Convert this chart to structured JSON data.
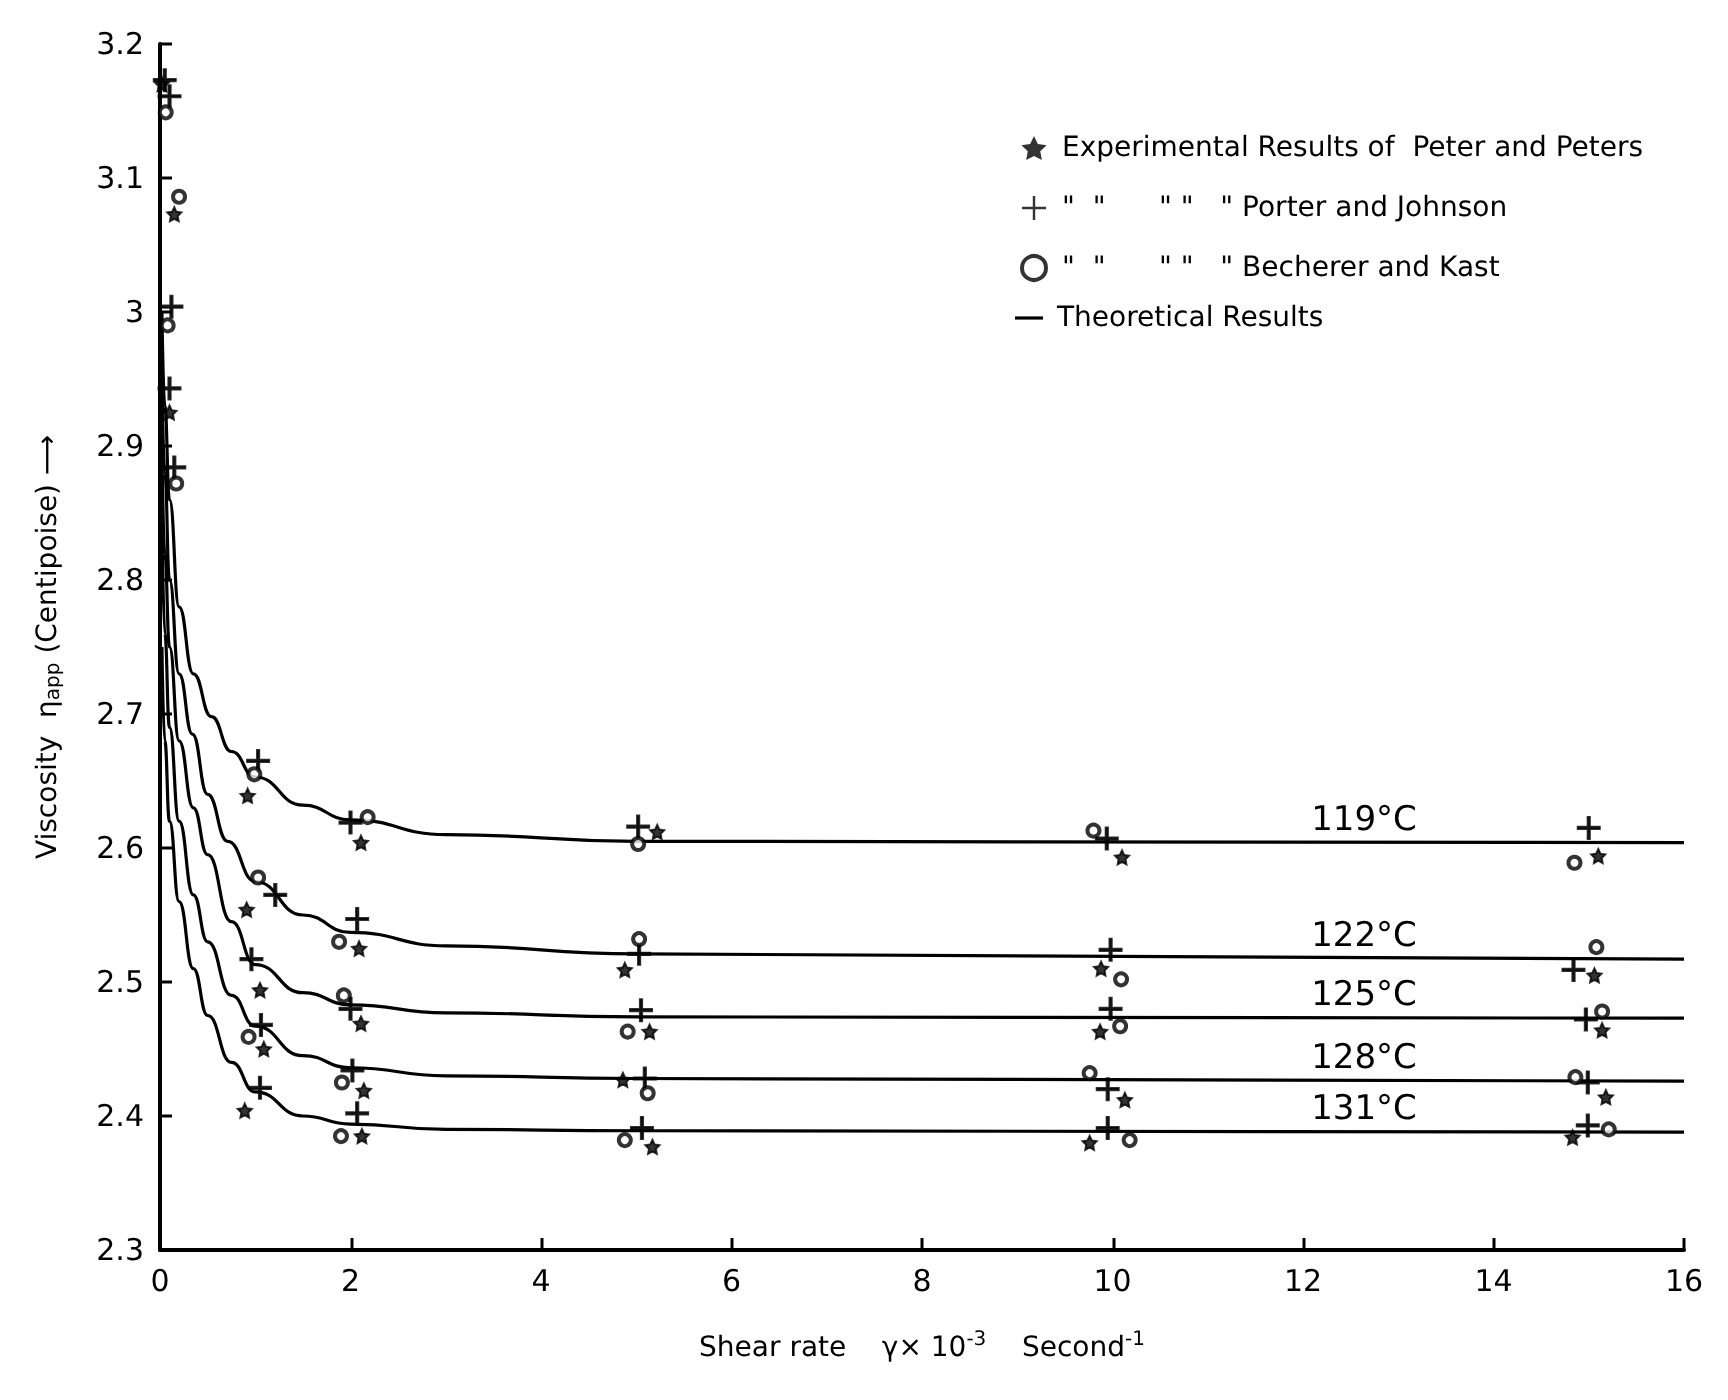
{
  "chart_data": {
    "type": "scatter",
    "xlabel": "Shear rate    γ× 10$^{-3}$    Second$^{-1}$",
    "ylabel": "Viscosity  η$_{app}$ (Centipoise) ⟶",
    "xlim": [
      0,
      16
    ],
    "xticks": [
      0,
      2,
      4,
      6,
      8,
      10,
      12,
      14,
      16
    ],
    "ylim": [
      2.3,
      3.2
    ],
    "yticks": [
      2.3,
      2.4,
      2.5,
      2.6,
      2.7,
      2.8,
      2.9,
      3.0,
      3.1,
      3.2
    ],
    "grid": false,
    "legend": "top right",
    "series": [
      {
        "name": "Experimental Results of  Peter and Peters",
        "marker": "star",
        "color": "#000000",
        "x": [
          0.02,
          0.15,
          0.1,
          0.92,
          2.11,
          5.22,
          10.1,
          15.1,
          0.91,
          2.09,
          4.88,
          9.88,
          15.06,
          1.05,
          2.11,
          5.14,
          9.87,
          15.14,
          1.09,
          2.14,
          4.86,
          10.13,
          15.18,
          0.89,
          2.12,
          5.17,
          9.76,
          14.83
        ],
        "values": [
          3.17,
          3.073,
          2.925,
          2.639,
          2.604,
          2.612,
          2.593,
          2.594,
          2.554,
          2.525,
          2.509,
          2.51,
          2.505,
          2.494,
          2.469,
          2.463,
          2.463,
          2.464,
          2.45,
          2.419,
          2.427,
          2.412,
          2.414,
          2.404,
          2.385,
          2.377,
          2.38,
          2.384
        ]
      },
      {
        "name": "\"  \"      \" \"   \" Porter and Johnson",
        "marker": "cross",
        "color": "#000000",
        "x": [
          0.05,
          0.1,
          0.12,
          0.1,
          0.15,
          1.03,
          2.0,
          5.02,
          9.94,
          15.0,
          1.21,
          2.07,
          5.03,
          9.98,
          14.84,
          0.96,
          2.0,
          5.05,
          9.98,
          14.97,
          1.06,
          2.02,
          5.09,
          9.95,
          14.99,
          1.05,
          2.07,
          5.06,
          9.95,
          14.99
        ],
        "values": [
          3.173,
          3.161,
          3.004,
          2.943,
          2.884,
          2.665,
          2.619,
          2.616,
          2.607,
          2.615,
          2.565,
          2.547,
          2.521,
          2.524,
          2.509,
          2.517,
          2.48,
          2.479,
          2.48,
          2.472,
          2.468,
          2.434,
          2.428,
          2.42,
          2.425,
          2.421,
          2.402,
          2.391,
          2.391,
          2.393
        ]
      },
      {
        "name": "\"  \"      \" \"   \" Becherer and Kast",
        "marker": "circle",
        "color": "#000000",
        "x": [
          0.06,
          0.2,
          0.08,
          0.17,
          0.99,
          2.18,
          5.02,
          9.8,
          14.85,
          1.03,
          1.88,
          5.03,
          10.09,
          15.08,
          1.93,
          4.91,
          10.08,
          15.14,
          0.93,
          1.91,
          5.12,
          9.76,
          14.86,
          1.9,
          4.88,
          10.18,
          15.21
        ],
        "values": [
          3.149,
          3.086,
          2.99,
          2.872,
          2.655,
          2.623,
          2.603,
          2.613,
          2.589,
          2.578,
          2.53,
          2.532,
          2.502,
          2.526,
          2.49,
          2.463,
          2.467,
          2.478,
          2.459,
          2.425,
          2.417,
          2.432,
          2.429,
          2.385,
          2.382,
          2.382,
          2.39
        ]
      },
      {
        "name": "119°C",
        "type": "line",
        "marker": "none",
        "color": "#000000",
        "x": [
          0.02,
          0.05,
          0.1,
          0.2,
          0.35,
          0.54,
          0.75,
          1,
          1.5,
          2,
          3,
          5,
          16
        ],
        "values": [
          3.0,
          2.93,
          2.86,
          2.78,
          2.73,
          2.698,
          2.672,
          2.653,
          2.632,
          2.621,
          2.61,
          2.605,
          2.604
        ]
      },
      {
        "name": "122°C",
        "type": "line",
        "marker": "none",
        "color": "#000000",
        "x": [
          0.02,
          0.05,
          0.1,
          0.2,
          0.34,
          0.5,
          0.71,
          1,
          1.5,
          2,
          3,
          5,
          16
        ],
        "values": [
          2.95,
          2.88,
          2.8,
          2.73,
          2.685,
          2.64,
          2.605,
          2.575,
          2.55,
          2.537,
          2.527,
          2.521,
          2.517
        ]
      },
      {
        "name": "125°C",
        "type": "line",
        "marker": "none",
        "color": "#000000",
        "x": [
          0.02,
          0.05,
          0.1,
          0.2,
          0.35,
          0.5,
          0.75,
          1,
          1.5,
          2,
          3,
          5,
          16
        ],
        "values": [
          2.9,
          2.82,
          2.75,
          2.68,
          2.63,
          2.595,
          2.545,
          2.513,
          2.492,
          2.483,
          2.477,
          2.474,
          2.473
        ]
      },
      {
        "name": "128°C",
        "type": "line",
        "marker": "none",
        "color": "#000000",
        "x": [
          0.02,
          0.05,
          0.1,
          0.2,
          0.35,
          0.5,
          0.75,
          1,
          1.5,
          2,
          3,
          5,
          16
        ],
        "values": [
          2.85,
          2.76,
          2.69,
          2.62,
          2.565,
          2.53,
          2.49,
          2.467,
          2.445,
          2.436,
          2.43,
          2.428,
          2.426
        ]
      },
      {
        "name": "131°C",
        "type": "line",
        "marker": "none",
        "color": "#000000",
        "x": [
          0.02,
          0.05,
          0.1,
          0.2,
          0.35,
          0.5,
          0.75,
          1,
          1.5,
          2,
          3,
          5,
          16
        ],
        "values": [
          2.75,
          2.68,
          2.62,
          2.56,
          2.51,
          2.475,
          2.44,
          2.418,
          2.4,
          2.394,
          2.39,
          2.389,
          2.388
        ]
      }
    ],
    "annotations": [
      "Theoretical Results"
    ]
  }
}
